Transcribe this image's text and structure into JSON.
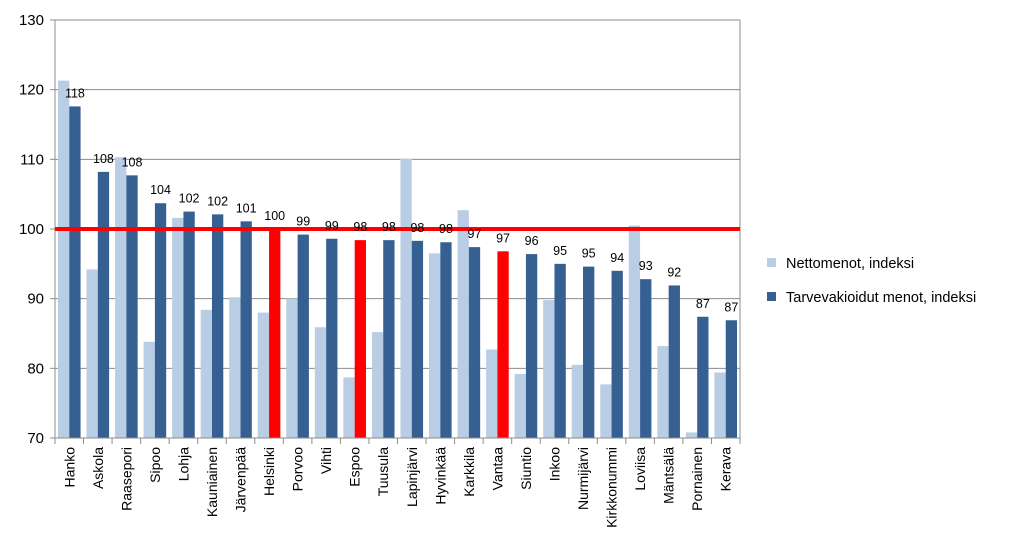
{
  "chart_data": {
    "type": "bar",
    "title": "",
    "xlabel": "",
    "ylabel": "",
    "ylim": [
      70,
      130
    ],
    "yticks": [
      70,
      80,
      90,
      100,
      110,
      120,
      130
    ],
    "grid": true,
    "legend_position": "right",
    "reference_line": {
      "value": 100,
      "color": "#ff0000"
    },
    "categories": [
      "Hanko",
      "Askola",
      "Raasepori",
      "Sipoo",
      "Lohja",
      "Kauniainen",
      "Järvenpää",
      "Helsinki",
      "Porvoo",
      "Vihti",
      "Espoo",
      "Tuusula",
      "Lapinjärvi",
      "Hyvinkää",
      "Karkkila",
      "Vantaa",
      "Siuntio",
      "Inkoo",
      "Nurmijärvi",
      "Kirkkonummi",
      "Loviisa",
      "Mäntsälä",
      "Pornainen",
      "Kerava"
    ],
    "highlighted_categories": [
      "Helsinki",
      "Espoo",
      "Vantaa"
    ],
    "highlight_color": "#ff0000",
    "series": [
      {
        "name": "Nettomenot, indeksi",
        "color": "#b9cde5",
        "values": [
          121.3,
          94.2,
          110.3,
          83.8,
          101.6,
          88.4,
          90.2,
          88.0,
          90.0,
          85.9,
          78.7,
          85.2,
          110.1,
          96.5,
          102.7,
          82.7,
          79.2,
          89.8,
          80.5,
          77.7,
          100.5,
          83.2,
          70.8,
          79.4
        ]
      },
      {
        "name": "Tarvevakioidut menot, indeksi",
        "color": "#376092",
        "values": [
          117.6,
          108.2,
          107.7,
          103.7,
          102.5,
          102.1,
          101.1,
          100.0,
          99.2,
          98.6,
          98.4,
          98.4,
          98.3,
          98.1,
          97.4,
          96.8,
          96.4,
          95.0,
          94.6,
          94.0,
          92.8,
          91.9,
          87.4,
          86.9
        ],
        "data_labels": [
          "118",
          "108",
          "108",
          "104",
          "102",
          "102",
          "101",
          "100",
          "99",
          "99",
          "98",
          "98",
          "98",
          "98",
          "97",
          "97",
          "96",
          "95",
          "95",
          "94",
          "93",
          "92",
          "87",
          "87"
        ]
      }
    ]
  }
}
